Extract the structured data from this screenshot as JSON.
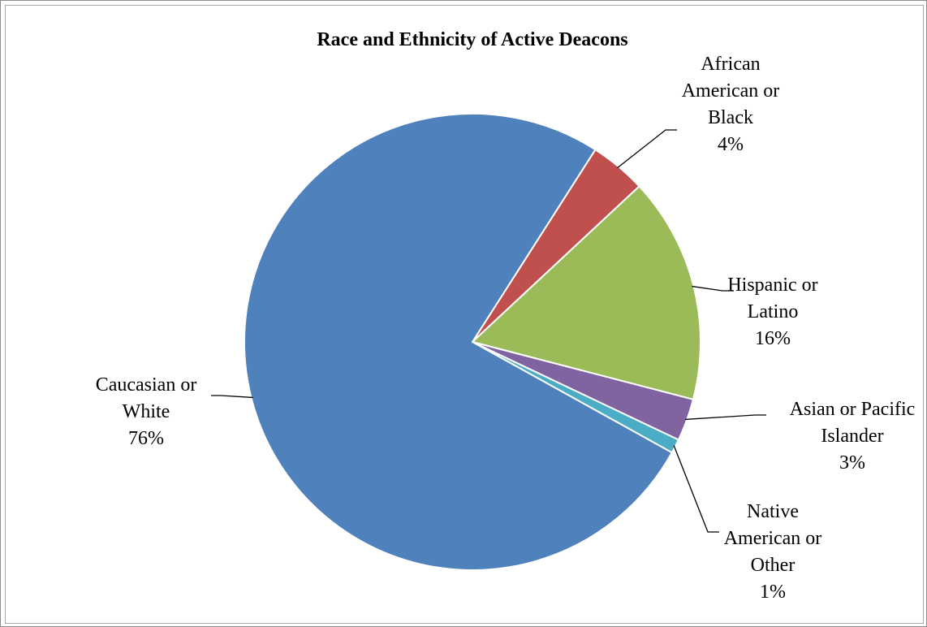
{
  "chart_data": {
    "type": "pie",
    "title": "Race and Ethnicity of Active Deacons",
    "slices": [
      {
        "lines": [
          "African",
          "American or",
          "Black"
        ],
        "pct_label": "4%",
        "value": 4,
        "color": "#c0504d"
      },
      {
        "lines": [
          "Hispanic or",
          "Latino"
        ],
        "pct_label": "16%",
        "value": 16,
        "color": "#9bbb59"
      },
      {
        "lines": [
          "Asian or Pacific",
          "Islander"
        ],
        "pct_label": "3%",
        "value": 3,
        "color": "#8064a2"
      },
      {
        "lines": [
          "Native",
          "American or",
          "Other"
        ],
        "pct_label": "1%",
        "value": 1,
        "color": "#4bacc6"
      },
      {
        "lines": [
          "Caucasian or",
          "White"
        ],
        "pct_label": "76%",
        "value": 76,
        "color": "#4f81bd"
      }
    ],
    "legend": "none",
    "data_labels": "outside-end"
  }
}
